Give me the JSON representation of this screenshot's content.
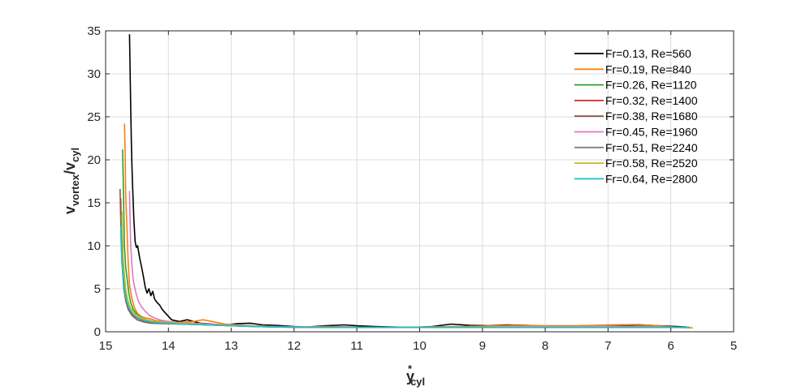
{
  "chart_data": {
    "type": "line",
    "title": "",
    "xlabel": {
      "base": "y",
      "sup": "*",
      "sub": "cyl"
    },
    "ylabel": {
      "base": "v",
      "sub1": "vortex",
      "mid": "/v",
      "sub2": "cyl"
    },
    "xlim": [
      15,
      5
    ],
    "x_reversed": true,
    "ylim": [
      0,
      35
    ],
    "xticks": [
      15,
      14,
      13,
      12,
      11,
      10,
      9,
      8,
      7,
      6,
      5
    ],
    "yticks": [
      0,
      5,
      10,
      15,
      20,
      25,
      30,
      35
    ],
    "grid": true,
    "legend_position": "top-right",
    "series": [
      {
        "name": "Fr=0.13, Re=560",
        "color": "#000000",
        "points": [
          [
            14.62,
            34.6
          ],
          [
            14.61,
            30.7
          ],
          [
            14.6,
            26
          ],
          [
            14.59,
            22
          ],
          [
            14.58,
            19
          ],
          [
            14.57,
            17
          ],
          [
            14.55,
            13
          ],
          [
            14.53,
            10.5
          ],
          [
            14.51,
            9.8
          ],
          [
            14.49,
            10
          ],
          [
            14.46,
            8.7
          ],
          [
            14.43,
            7.6
          ],
          [
            14.4,
            6.5
          ],
          [
            14.37,
            5.2
          ],
          [
            14.34,
            4.5
          ],
          [
            14.31,
            5
          ],
          [
            14.28,
            4.2
          ],
          [
            14.25,
            4.7
          ],
          [
            14.22,
            3.8
          ],
          [
            14.18,
            3.4
          ],
          [
            14.14,
            3.1
          ],
          [
            14.1,
            2.6
          ],
          [
            14.05,
            2.2
          ],
          [
            14.0,
            1.8
          ],
          [
            13.95,
            1.4
          ],
          [
            13.9,
            1.3
          ],
          [
            13.82,
            1.2
          ],
          [
            13.7,
            1.4
          ],
          [
            13.6,
            1.2
          ],
          [
            13.5,
            1.0
          ],
          [
            13.3,
            0.9
          ],
          [
            13.1,
            0.8
          ],
          [
            12.9,
            0.95
          ],
          [
            12.7,
            1.0
          ],
          [
            12.5,
            0.8
          ],
          [
            12.3,
            0.75
          ],
          [
            12.0,
            0.6
          ],
          [
            11.8,
            0.55
          ],
          [
            11.5,
            0.7
          ],
          [
            11.2,
            0.8
          ],
          [
            11.0,
            0.7
          ],
          [
            10.7,
            0.6
          ],
          [
            10.4,
            0.55
          ],
          [
            10.1,
            0.5
          ],
          [
            9.8,
            0.6
          ],
          [
            9.5,
            0.9
          ],
          [
            9.2,
            0.75
          ],
          [
            8.9,
            0.7
          ],
          [
            8.6,
            0.8
          ],
          [
            8.3,
            0.75
          ],
          [
            8.0,
            0.65
          ],
          [
            7.7,
            0.6
          ],
          [
            7.4,
            0.7
          ],
          [
            7.1,
            0.65
          ],
          [
            6.8,
            0.75
          ],
          [
            6.5,
            0.8
          ],
          [
            6.2,
            0.7
          ],
          [
            5.9,
            0.6
          ],
          [
            5.75,
            0.55
          ]
        ]
      },
      {
        "name": "Fr=0.19, Re=840",
        "color": "#ff7f0e",
        "points": [
          [
            14.7,
            24.2
          ],
          [
            14.69,
            21
          ],
          [
            14.68,
            16
          ],
          [
            14.66,
            12
          ],
          [
            14.64,
            8
          ],
          [
            14.62,
            5.5
          ],
          [
            14.58,
            3.8
          ],
          [
            14.54,
            2.8
          ],
          [
            14.5,
            2.2
          ],
          [
            14.44,
            1.8
          ],
          [
            14.36,
            1.6
          ],
          [
            14.28,
            1.5
          ],
          [
            14.2,
            1.3
          ],
          [
            14.1,
            1.2
          ],
          [
            14.0,
            1.1
          ],
          [
            13.8,
            1.1
          ],
          [
            13.6,
            1.2
          ],
          [
            13.45,
            1.4
          ],
          [
            13.3,
            1.2
          ],
          [
            13.1,
            0.9
          ],
          [
            12.8,
            0.75
          ],
          [
            12.5,
            0.6
          ],
          [
            12.0,
            0.55
          ],
          [
            11.5,
            0.6
          ],
          [
            11.0,
            0.55
          ],
          [
            10.5,
            0.5
          ],
          [
            10.0,
            0.55
          ],
          [
            9.5,
            0.6
          ],
          [
            9.0,
            0.65
          ],
          [
            8.5,
            0.75
          ],
          [
            8.0,
            0.7
          ],
          [
            7.5,
            0.7
          ],
          [
            7.0,
            0.8
          ],
          [
            6.5,
            0.85
          ],
          [
            6.2,
            0.7
          ],
          [
            5.9,
            0.5
          ],
          [
            5.65,
            0.45
          ]
        ]
      },
      {
        "name": "Fr=0.26, Re=1120",
        "color": "#2ca02c",
        "points": [
          [
            14.73,
            21.2
          ],
          [
            14.72,
            18
          ],
          [
            14.71,
            14
          ],
          [
            14.7,
            10
          ],
          [
            14.68,
            7.5
          ],
          [
            14.66,
            6.3
          ],
          [
            14.63,
            4.5
          ],
          [
            14.6,
            3.4
          ],
          [
            14.56,
            2.6
          ],
          [
            14.5,
            2.0
          ],
          [
            14.42,
            1.6
          ],
          [
            14.32,
            1.3
          ],
          [
            14.2,
            1.15
          ],
          [
            14.0,
            1.0
          ],
          [
            13.8,
            0.95
          ],
          [
            13.5,
            0.9
          ],
          [
            13.2,
            0.8
          ],
          [
            12.8,
            0.7
          ],
          [
            12.4,
            0.6
          ],
          [
            12.0,
            0.55
          ],
          [
            11.5,
            0.5
          ],
          [
            11.0,
            0.5
          ],
          [
            10.5,
            0.5
          ],
          [
            10.0,
            0.5
          ],
          [
            9.5,
            0.55
          ],
          [
            9.0,
            0.55
          ],
          [
            8.5,
            0.55
          ],
          [
            8.0,
            0.6
          ],
          [
            7.5,
            0.6
          ],
          [
            7.0,
            0.6
          ],
          [
            6.5,
            0.6
          ],
          [
            6.0,
            0.55
          ],
          [
            5.7,
            0.5
          ]
        ]
      },
      {
        "name": "Fr=0.32, Re=1400",
        "color": "#d62728",
        "points": [
          [
            14.76,
            15.5
          ],
          [
            14.75,
            12
          ],
          [
            14.74,
            9
          ],
          [
            14.72,
            6.5
          ],
          [
            14.7,
            4.8
          ],
          [
            14.67,
            3.6
          ],
          [
            14.63,
            2.8
          ],
          [
            14.58,
            2.1
          ],
          [
            14.5,
            1.6
          ],
          [
            14.4,
            1.3
          ],
          [
            14.3,
            1.15
          ],
          [
            14.1,
            1.05
          ],
          [
            13.9,
            1.0
          ],
          [
            13.6,
            0.9
          ],
          [
            13.2,
            0.8
          ],
          [
            12.8,
            0.7
          ],
          [
            12.4,
            0.6
          ],
          [
            12.0,
            0.55
          ],
          [
            11.5,
            0.5
          ],
          [
            11.0,
            0.5
          ],
          [
            10.5,
            0.5
          ],
          [
            10.0,
            0.5
          ],
          [
            9.5,
            0.5
          ],
          [
            9.0,
            0.55
          ],
          [
            8.5,
            0.55
          ],
          [
            8.0,
            0.55
          ],
          [
            7.5,
            0.55
          ],
          [
            7.0,
            0.55
          ],
          [
            6.5,
            0.5
          ],
          [
            6.0,
            0.5
          ],
          [
            5.7,
            0.5
          ]
        ]
      },
      {
        "name": "Fr=0.38, Re=1680",
        "color": "#8c564b",
        "points": [
          [
            14.77,
            16.6
          ],
          [
            14.76,
            13
          ],
          [
            14.75,
            10
          ],
          [
            14.73,
            7
          ],
          [
            14.71,
            5
          ],
          [
            14.68,
            3.6
          ],
          [
            14.64,
            2.6
          ],
          [
            14.58,
            1.9
          ],
          [
            14.5,
            1.4
          ],
          [
            14.4,
            1.15
          ],
          [
            14.28,
            1.0
          ],
          [
            14.1,
            0.95
          ],
          [
            13.8,
            0.9
          ],
          [
            13.4,
            0.8
          ],
          [
            13.0,
            0.7
          ],
          [
            12.6,
            0.6
          ],
          [
            12.2,
            0.55
          ],
          [
            11.8,
            0.5
          ],
          [
            11.0,
            0.5
          ],
          [
            10.0,
            0.5
          ],
          [
            9.0,
            0.5
          ],
          [
            8.0,
            0.5
          ],
          [
            7.0,
            0.5
          ],
          [
            6.0,
            0.5
          ],
          [
            5.7,
            0.5
          ]
        ]
      },
      {
        "name": "Fr=0.45, Re=1960",
        "color": "#e377c2",
        "points": [
          [
            14.62,
            16.4
          ],
          [
            14.61,
            13
          ],
          [
            14.6,
            10
          ],
          [
            14.58,
            7.6
          ],
          [
            14.56,
            6
          ],
          [
            14.52,
            4.6
          ],
          [
            14.48,
            3.6
          ],
          [
            14.43,
            2.9
          ],
          [
            14.37,
            2.4
          ],
          [
            14.3,
            1.9
          ],
          [
            14.22,
            1.6
          ],
          [
            14.12,
            1.35
          ],
          [
            14.0,
            1.2
          ],
          [
            13.8,
            1.05
          ],
          [
            13.5,
            0.95
          ],
          [
            13.1,
            0.8
          ],
          [
            12.7,
            0.7
          ],
          [
            12.3,
            0.6
          ],
          [
            11.8,
            0.55
          ],
          [
            11.2,
            0.5
          ],
          [
            10.5,
            0.5
          ],
          [
            10.0,
            0.5
          ],
          [
            9.5,
            0.55
          ],
          [
            9.0,
            0.55
          ],
          [
            8.5,
            0.6
          ],
          [
            8.0,
            0.6
          ],
          [
            7.5,
            0.6
          ],
          [
            7.0,
            0.65
          ],
          [
            6.5,
            0.6
          ],
          [
            6.0,
            0.55
          ],
          [
            5.7,
            0.5
          ]
        ]
      },
      {
        "name": "Fr=0.51, Re=2240",
        "color": "#7f7f7f",
        "points": [
          [
            14.75,
            13.5
          ],
          [
            14.74,
            10.5
          ],
          [
            14.73,
            8
          ],
          [
            14.71,
            6
          ],
          [
            14.69,
            4.5
          ],
          [
            14.66,
            3.4
          ],
          [
            14.62,
            2.6
          ],
          [
            14.56,
            2.0
          ],
          [
            14.48,
            1.6
          ],
          [
            14.38,
            1.3
          ],
          [
            14.25,
            1.1
          ],
          [
            14.05,
            1.0
          ],
          [
            13.8,
            0.9
          ],
          [
            13.4,
            0.8
          ],
          [
            13.0,
            0.7
          ],
          [
            12.6,
            0.6
          ],
          [
            12.2,
            0.55
          ],
          [
            11.6,
            0.5
          ],
          [
            11.0,
            0.5
          ],
          [
            10.0,
            0.5
          ],
          [
            9.0,
            0.5
          ],
          [
            8.0,
            0.5
          ],
          [
            7.0,
            0.5
          ],
          [
            6.0,
            0.5
          ],
          [
            5.7,
            0.5
          ]
        ]
      },
      {
        "name": "Fr=0.58, Re=2520",
        "color": "#bcbd22",
        "points": [
          [
            14.74,
            14
          ],
          [
            14.73,
            11
          ],
          [
            14.72,
            8.5
          ],
          [
            14.7,
            6.5
          ],
          [
            14.68,
            5
          ],
          [
            14.65,
            3.8
          ],
          [
            14.61,
            2.9
          ],
          [
            14.55,
            2.2
          ],
          [
            14.47,
            1.75
          ],
          [
            14.37,
            1.45
          ],
          [
            14.25,
            1.25
          ],
          [
            14.05,
            1.1
          ],
          [
            13.8,
            1.0
          ],
          [
            13.4,
            0.85
          ],
          [
            13.0,
            0.75
          ],
          [
            12.6,
            0.65
          ],
          [
            12.2,
            0.55
          ],
          [
            11.6,
            0.5
          ],
          [
            11.0,
            0.5
          ],
          [
            10.0,
            0.5
          ],
          [
            9.0,
            0.55
          ],
          [
            8.0,
            0.55
          ],
          [
            7.0,
            0.55
          ],
          [
            6.0,
            0.5
          ],
          [
            5.7,
            0.5
          ]
        ]
      },
      {
        "name": "Fr=0.64, Re=2800",
        "color": "#17becf",
        "points": [
          [
            14.76,
            12.3
          ],
          [
            14.75,
            10
          ],
          [
            14.74,
            8
          ],
          [
            14.72,
            6.2
          ],
          [
            14.7,
            4.8
          ],
          [
            14.67,
            3.7
          ],
          [
            14.63,
            2.8
          ],
          [
            14.57,
            2.1
          ],
          [
            14.49,
            1.6
          ],
          [
            14.39,
            1.3
          ],
          [
            14.26,
            1.1
          ],
          [
            14.05,
            1.0
          ],
          [
            13.8,
            0.9
          ],
          [
            13.4,
            0.8
          ],
          [
            13.0,
            0.7
          ],
          [
            12.6,
            0.6
          ],
          [
            12.2,
            0.55
          ],
          [
            11.6,
            0.5
          ],
          [
            11.0,
            0.5
          ],
          [
            10.0,
            0.5
          ],
          [
            9.0,
            0.5
          ],
          [
            8.0,
            0.5
          ],
          [
            7.0,
            0.5
          ],
          [
            6.0,
            0.5
          ],
          [
            5.7,
            0.5
          ]
        ]
      }
    ]
  }
}
